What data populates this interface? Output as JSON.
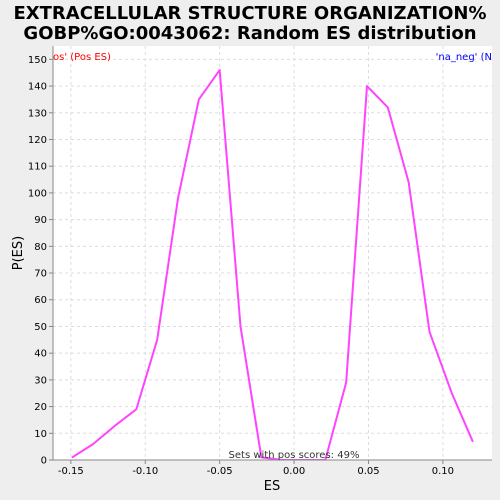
{
  "chart_data": {
    "type": "line",
    "title_line1": "EXTRACELLULAR STRUCTURE ORGANIZATION%",
    "title_line2": "GOBP%GO:0043062: Random ES distribution",
    "xlabel": "ES",
    "ylabel": "P(ES)",
    "xlim": [
      -0.162,
      0.133
    ],
    "ylim": [
      0,
      155
    ],
    "x_ticks": [
      -0.15,
      -0.1,
      -0.05,
      0.0,
      0.05,
      0.1
    ],
    "x_tick_labels": [
      "-0.15",
      "-0.10",
      "-0.05",
      "0.00",
      "0.05",
      "0.10"
    ],
    "y_ticks": [
      0,
      10,
      20,
      30,
      40,
      50,
      60,
      70,
      80,
      90,
      100,
      110,
      120,
      130,
      140,
      150
    ],
    "y_tick_labels": [
      "0",
      "10",
      "20",
      "30",
      "40",
      "50",
      "60",
      "70",
      "80",
      "90",
      "100",
      "110",
      "120",
      "130",
      "140",
      "150"
    ],
    "grid": true,
    "legend_left": "os' (Pos ES)",
    "legend_right": "'na_neg' (N",
    "annotation": "Sets with pos scores: 49%",
    "colors": {
      "line": "#ff44ff",
      "legend_left": "#ff0000",
      "legend_right": "#0000ff",
      "background": "#ffffff",
      "page": "#eeeeee",
      "grid": "#dddddd"
    },
    "series": [
      {
        "x": [
          -0.149,
          -0.135,
          -0.12,
          -0.106,
          -0.092,
          -0.078,
          -0.064,
          -0.05,
          -0.036,
          -0.022,
          -0.008,
          0.007,
          0.021,
          0.035,
          0.049,
          0.063,
          0.077,
          0.091,
          0.106,
          0.12
        ],
        "y": [
          1,
          6,
          13,
          19,
          45,
          98,
          135,
          146,
          50,
          1,
          0,
          0,
          0,
          29,
          140,
          132,
          104,
          48,
          25,
          7
        ]
      }
    ]
  }
}
